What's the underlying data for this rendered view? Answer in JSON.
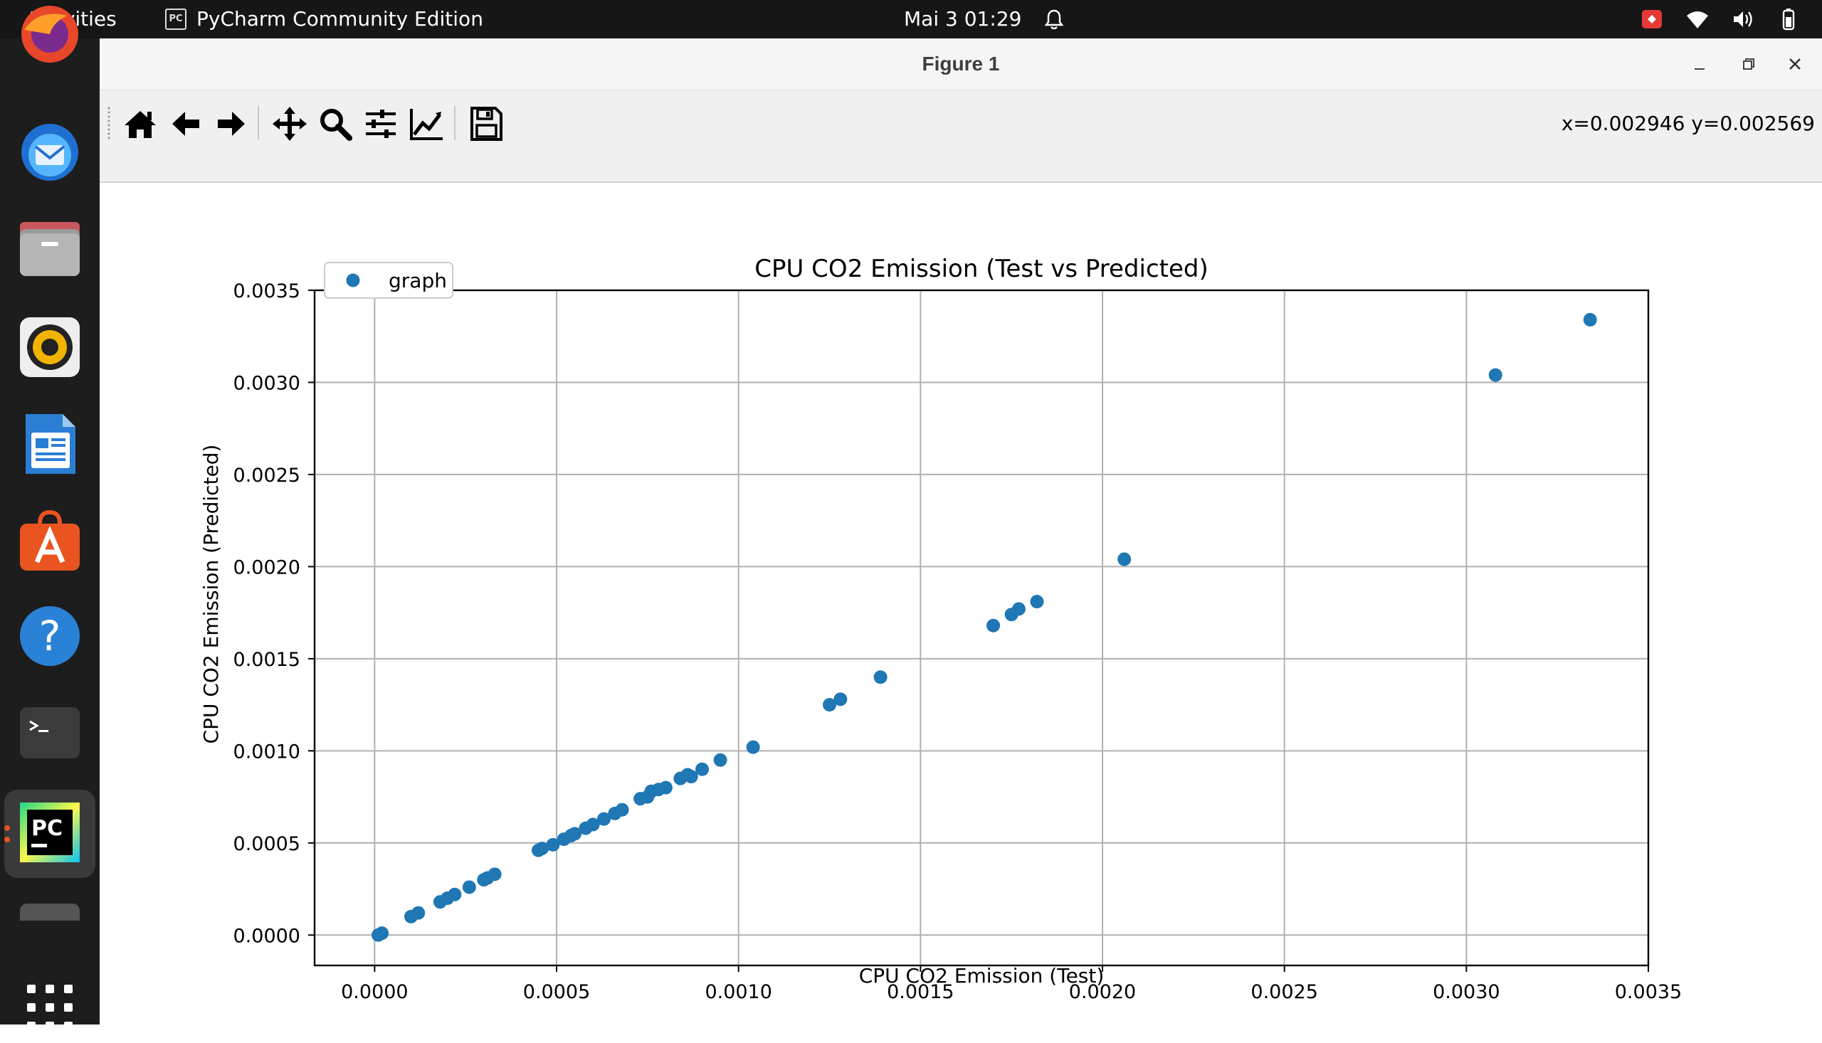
{
  "topbar": {
    "activities": "Activities",
    "app_name": "PyCharm Community Edition",
    "app_icon_text": "PC",
    "clock": "Mai 3  01:29",
    "tray_icons": [
      "notification-bell-icon",
      "security-app-icon",
      "wifi-icon",
      "volume-icon",
      "battery-icon"
    ]
  },
  "dock": {
    "items": [
      {
        "name": "firefox-icon"
      },
      {
        "name": "thunderbird-icon"
      },
      {
        "name": "files-icon"
      },
      {
        "name": "rhythmbox-icon"
      },
      {
        "name": "libreoffice-writer-icon"
      },
      {
        "name": "app-center-icon"
      },
      {
        "name": "help-icon"
      },
      {
        "name": "terminal-icon"
      },
      {
        "name": "pycharm-icon",
        "label": "PC"
      },
      {
        "name": "show-apps-icon"
      }
    ]
  },
  "window": {
    "title": "Figure 1",
    "coords_readout": "x=0.002946 y=0.002569",
    "toolbar_tools": [
      "home-icon",
      "back-arrow-icon",
      "forward-arrow-icon",
      "pan-icon",
      "zoom-icon",
      "subplots-icon",
      "edit-axes-icon",
      "save-icon"
    ]
  },
  "chart_data": {
    "type": "scatter",
    "title": "CPU CO2 Emission (Test vs Predicted)",
    "xlabel": "CPU CO2 Emission (Test)",
    "ylabel": "CPU CO2 Emission (Predicted)",
    "xlim": [
      -0.000165,
      0.0035
    ],
    "ylim": [
      -0.000165,
      0.0035
    ],
    "xticks": [
      "0.0000",
      "0.0005",
      "0.0010",
      "0.0015",
      "0.0020",
      "0.0025",
      "0.0030",
      "0.0035"
    ],
    "yticks": [
      "0.0000",
      "0.0005",
      "0.0010",
      "0.0015",
      "0.0020",
      "0.0025",
      "0.0030",
      "0.0035"
    ],
    "tick_values": [
      0,
      0.0005,
      0.001,
      0.0015,
      0.002,
      0.0025,
      0.003,
      0.0035
    ],
    "grid": true,
    "legend_position": "upper-left",
    "series": [
      {
        "name": "graph",
        "color": "#1f77b4",
        "points": [
          [
            1e-05,
            0.0
          ],
          [
            2e-05,
            1e-05
          ],
          [
            0.0001,
            0.0001
          ],
          [
            0.00012,
            0.00012
          ],
          [
            0.00018,
            0.00018
          ],
          [
            0.0002,
            0.0002
          ],
          [
            0.00022,
            0.00022
          ],
          [
            0.00026,
            0.00026
          ],
          [
            0.0003,
            0.0003
          ],
          [
            0.00031,
            0.00031
          ],
          [
            0.00033,
            0.00033
          ],
          [
            0.00045,
            0.00046
          ],
          [
            0.00046,
            0.00047
          ],
          [
            0.00049,
            0.00049
          ],
          [
            0.00052,
            0.00052
          ],
          [
            0.00054,
            0.00054
          ],
          [
            0.00055,
            0.00055
          ],
          [
            0.00058,
            0.00058
          ],
          [
            0.0006,
            0.0006
          ],
          [
            0.00063,
            0.00063
          ],
          [
            0.00066,
            0.00066
          ],
          [
            0.00068,
            0.00068
          ],
          [
            0.00073,
            0.00074
          ],
          [
            0.00075,
            0.00075
          ],
          [
            0.00076,
            0.00078
          ],
          [
            0.00078,
            0.00079
          ],
          [
            0.0008,
            0.0008
          ],
          [
            0.00084,
            0.00085
          ],
          [
            0.00086,
            0.00087
          ],
          [
            0.00087,
            0.00086
          ],
          [
            0.0009,
            0.0009
          ],
          [
            0.00095,
            0.00095
          ],
          [
            0.00104,
            0.00102
          ],
          [
            0.00125,
            0.00125
          ],
          [
            0.00128,
            0.00128
          ],
          [
            0.00139,
            0.0014
          ],
          [
            0.0017,
            0.00168
          ],
          [
            0.00175,
            0.00174
          ],
          [
            0.00177,
            0.00177
          ],
          [
            0.00182,
            0.00181
          ],
          [
            0.00206,
            0.00204
          ],
          [
            0.00308,
            0.00304
          ],
          [
            0.00334,
            0.00334
          ]
        ]
      }
    ]
  }
}
